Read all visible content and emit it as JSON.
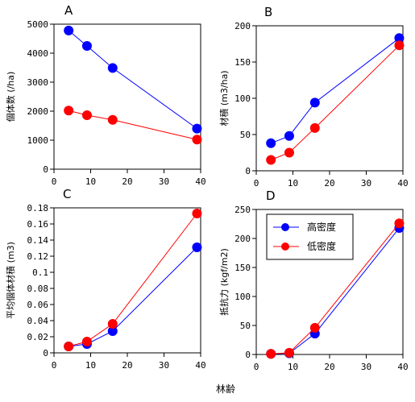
{
  "figure": {
    "xlabel": "林齢"
  },
  "colors": {
    "high_density": "#0000ff",
    "low_density": "#ff0000",
    "axis": "#000000"
  },
  "legend": {
    "panel": "D",
    "placement": "top-left",
    "entries": [
      "高密度",
      "低密度"
    ]
  },
  "chart_data": [
    {
      "panel": "A",
      "type": "line",
      "ylabel": "個体数 (/ha)",
      "xlim": [
        0,
        40
      ],
      "ylim": [
        0,
        5000
      ],
      "xticks": [
        0,
        10,
        20,
        30,
        40
      ],
      "yticks": [
        0,
        1000,
        2000,
        3000,
        4000,
        5000
      ],
      "series": [
        {
          "name": "高密度",
          "x": [
            4,
            9,
            16,
            39
          ],
          "y": [
            4780,
            4250,
            3490,
            1400
          ]
        },
        {
          "name": "低密度",
          "x": [
            4,
            9,
            16,
            39
          ],
          "y": [
            2020,
            1860,
            1700,
            1020
          ]
        }
      ]
    },
    {
      "panel": "B",
      "type": "line",
      "ylabel": "材積 (m3/ha)",
      "xlim": [
        0,
        40
      ],
      "ylim": [
        0,
        200
      ],
      "xticks": [
        0,
        10,
        20,
        30,
        40
      ],
      "yticks": [
        0,
        50,
        100,
        150,
        200
      ],
      "series": [
        {
          "name": "高密度",
          "x": [
            4,
            9,
            16,
            39
          ],
          "y": [
            38,
            48,
            94,
            183
          ]
        },
        {
          "name": "低密度",
          "x": [
            4,
            9,
            16,
            39
          ],
          "y": [
            15,
            25,
            59,
            173
          ]
        }
      ]
    },
    {
      "panel": "C",
      "type": "line",
      "ylabel": "平均個体材積 (m3)",
      "xlim": [
        0,
        40
      ],
      "ylim": [
        0,
        0.18
      ],
      "xticks": [
        0,
        10,
        20,
        30,
        40
      ],
      "yticks": [
        0,
        0.02,
        0.04,
        0.06,
        0.08,
        0.1,
        0.12,
        0.14,
        0.16,
        0.18
      ],
      "series": [
        {
          "name": "高密度",
          "x": [
            4,
            9,
            16,
            39
          ],
          "y": [
            0.008,
            0.011,
            0.027,
            0.131
          ]
        },
        {
          "name": "低密度",
          "x": [
            4,
            9,
            16,
            39
          ],
          "y": [
            0.008,
            0.014,
            0.036,
            0.173
          ]
        }
      ]
    },
    {
      "panel": "D",
      "type": "line",
      "ylabel": "抵抗力 (kgf/m2)",
      "xlim": [
        0,
        40
      ],
      "ylim": [
        0,
        250
      ],
      "xticks": [
        0,
        10,
        20,
        30,
        40
      ],
      "yticks": [
        0,
        50,
        100,
        150,
        200,
        250
      ],
      "series": [
        {
          "name": "高密度",
          "x": [
            4,
            9,
            16,
            39
          ],
          "y": [
            1,
            2,
            36,
            218
          ]
        },
        {
          "name": "低密度",
          "x": [
            4,
            9,
            16,
            39
          ],
          "y": [
            1,
            3,
            46,
            226
          ]
        }
      ]
    }
  ]
}
